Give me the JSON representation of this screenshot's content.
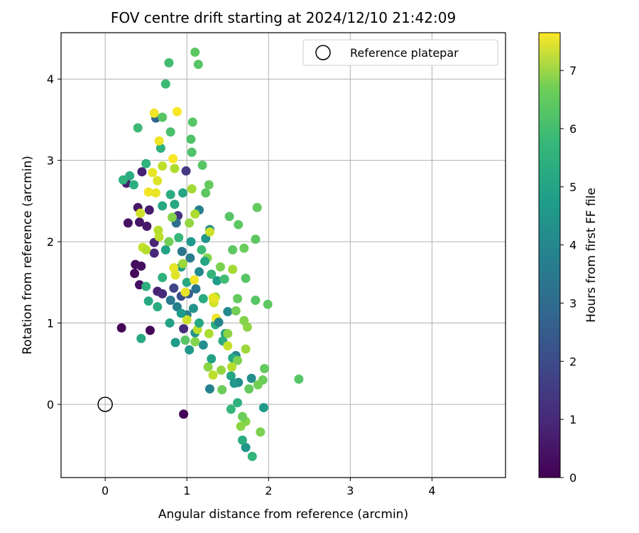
{
  "chart_data": {
    "type": "scatter",
    "title": "FOV centre drift starting at 2024/12/10 21:42:09",
    "xlabel": "Angular distance from reference (arcmin)",
    "ylabel": "Rotation from reference (arcmin)",
    "xlim": [
      -0.54,
      4.9
    ],
    "ylim": [
      -0.9,
      4.57
    ],
    "xticks": [
      "0",
      "1",
      "2",
      "3",
      "4"
    ],
    "yticks": [
      "0",
      "1",
      "2",
      "3",
      "4"
    ],
    "grid": true,
    "legend": {
      "placement": "top-right",
      "entries": [
        "Reference platepar"
      ]
    },
    "reference_point": {
      "x": 0,
      "y": 0
    },
    "colorbar": {
      "label": "Hours from first FF file",
      "range": [
        0,
        7.65
      ],
      "ticks": [
        "0",
        "1",
        "2",
        "3",
        "4",
        "5",
        "6",
        "7"
      ],
      "colormap": "viridis"
    },
    "points": [
      {
        "x": 0.2,
        "y": 0.94,
        "c": 0.05
      },
      {
        "x": 0.55,
        "y": 0.91,
        "c": 0.1
      },
      {
        "x": 0.96,
        "y": -0.12,
        "c": 0.05
      },
      {
        "x": 0.36,
        "y": 1.61,
        "c": 0.2
      },
      {
        "x": 0.37,
        "y": 1.72,
        "c": 0.25
      },
      {
        "x": 0.42,
        "y": 1.47,
        "c": 0.3
      },
      {
        "x": 0.44,
        "y": 1.7,
        "c": 0.3
      },
      {
        "x": 0.28,
        "y": 2.23,
        "c": 0.4
      },
      {
        "x": 0.42,
        "y": 2.24,
        "c": 0.45
      },
      {
        "x": 0.51,
        "y": 2.19,
        "c": 0.5
      },
      {
        "x": 0.54,
        "y": 2.39,
        "c": 0.55
      },
      {
        "x": 0.4,
        "y": 2.42,
        "c": 0.5
      },
      {
        "x": 0.26,
        "y": 2.72,
        "c": 0.6
      },
      {
        "x": 0.45,
        "y": 2.86,
        "c": 0.7
      },
      {
        "x": 0.6,
        "y": 1.99,
        "c": 0.8
      },
      {
        "x": 0.6,
        "y": 1.86,
        "c": 0.85
      },
      {
        "x": 0.64,
        "y": 1.39,
        "c": 0.75
      },
      {
        "x": 0.7,
        "y": 1.36,
        "c": 0.9
      },
      {
        "x": 0.96,
        "y": 0.93,
        "c": 0.95
      },
      {
        "x": 0.99,
        "y": 2.87,
        "c": 1.3
      },
      {
        "x": 0.89,
        "y": 2.32,
        "c": 1.15
      },
      {
        "x": 0.84,
        "y": 1.43,
        "c": 1.6
      },
      {
        "x": 0.93,
        "y": 1.33,
        "c": 1.9
      },
      {
        "x": 1.02,
        "y": 1.36,
        "c": 2.2
      },
      {
        "x": 0.62,
        "y": 3.52,
        "c": 2.5
      },
      {
        "x": 0.87,
        "y": 2.23,
        "c": 2.8
      },
      {
        "x": 0.94,
        "y": 1.88,
        "c": 3.0
      },
      {
        "x": 0.8,
        "y": 1.28,
        "c": 3.1
      },
      {
        "x": 0.88,
        "y": 1.2,
        "c": 3.3
      },
      {
        "x": 1.0,
        "y": 1.1,
        "c": 3.2
      },
      {
        "x": 1.11,
        "y": 1.42,
        "c": 3.0
      },
      {
        "x": 1.15,
        "y": 2.39,
        "c": 3.3
      },
      {
        "x": 1.28,
        "y": 0.19,
        "c": 3.4
      },
      {
        "x": 1.6,
        "y": 0.6,
        "c": 3.5
      },
      {
        "x": 1.5,
        "y": 1.14,
        "c": 3.6
      },
      {
        "x": 1.63,
        "y": 0.27,
        "c": 3.7
      },
      {
        "x": 1.79,
        "y": 0.32,
        "c": 3.8
      },
      {
        "x": 1.72,
        "y": -0.53,
        "c": 4.0
      },
      {
        "x": 1.94,
        "y": -0.04,
        "c": 4.2
      },
      {
        "x": 1.1,
        "y": 0.88,
        "c": 3.9
      },
      {
        "x": 1.2,
        "y": 0.73,
        "c": 3.8
      },
      {
        "x": 1.03,
        "y": 0.67,
        "c": 4.1
      },
      {
        "x": 0.86,
        "y": 0.76,
        "c": 4.2
      },
      {
        "x": 0.79,
        "y": 1.0,
        "c": 4.4
      },
      {
        "x": 0.93,
        "y": 1.69,
        "c": 4.3
      },
      {
        "x": 1.05,
        "y": 2.0,
        "c": 4.1
      },
      {
        "x": 1.23,
        "y": 2.04,
        "c": 4.0
      },
      {
        "x": 1.28,
        "y": 2.15,
        "c": 3.8
      },
      {
        "x": 1.37,
        "y": 1.52,
        "c": 4.2
      },
      {
        "x": 1.47,
        "y": 0.87,
        "c": 4.3
      },
      {
        "x": 1.54,
        "y": 0.35,
        "c": 4.5
      },
      {
        "x": 0.53,
        "y": 1.27,
        "c": 4.6
      },
      {
        "x": 0.64,
        "y": 1.2,
        "c": 4.7
      },
      {
        "x": 0.5,
        "y": 1.45,
        "c": 4.8
      },
      {
        "x": 0.44,
        "y": 0.81,
        "c": 4.6
      },
      {
        "x": 0.7,
        "y": 1.56,
        "c": 4.9
      },
      {
        "x": 0.35,
        "y": 2.7,
        "c": 4.8
      },
      {
        "x": 0.3,
        "y": 2.81,
        "c": 4.7
      },
      {
        "x": 0.22,
        "y": 2.76,
        "c": 4.9
      },
      {
        "x": 0.5,
        "y": 2.96,
        "c": 4.9
      },
      {
        "x": 0.68,
        "y": 3.15,
        "c": 4.9
      },
      {
        "x": 0.85,
        "y": 2.46,
        "c": 4.6
      },
      {
        "x": 0.8,
        "y": 2.58,
        "c": 4.7
      },
      {
        "x": 0.7,
        "y": 2.44,
        "c": 4.6
      },
      {
        "x": 0.74,
        "y": 1.9,
        "c": 4.4
      },
      {
        "x": 1.0,
        "y": 1.5,
        "c": 4.6
      },
      {
        "x": 1.2,
        "y": 1.3,
        "c": 4.7
      },
      {
        "x": 1.35,
        "y": 0.98,
        "c": 4.8
      },
      {
        "x": 1.44,
        "y": 0.78,
        "c": 4.7
      },
      {
        "x": 1.56,
        "y": 0.57,
        "c": 4.6
      },
      {
        "x": 1.62,
        "y": 0.02,
        "c": 4.9
      },
      {
        "x": 1.68,
        "y": -0.44,
        "c": 4.8
      },
      {
        "x": 1.8,
        "y": -0.64,
        "c": 5.0
      },
      {
        "x": 1.54,
        "y": -0.06,
        "c": 5.1
      },
      {
        "x": 0.74,
        "y": 3.94,
        "c": 5.2
      },
      {
        "x": 0.78,
        "y": 4.2,
        "c": 5.3
      },
      {
        "x": 0.8,
        "y": 3.35,
        "c": 5.4
      },
      {
        "x": 0.4,
        "y": 3.4,
        "c": 5.2
      },
      {
        "x": 0.7,
        "y": 3.53,
        "c": 5.6
      },
      {
        "x": 1.07,
        "y": 3.47,
        "c": 5.6
      },
      {
        "x": 1.1,
        "y": 4.33,
        "c": 5.7
      },
      {
        "x": 1.14,
        "y": 4.18,
        "c": 5.6
      },
      {
        "x": 1.06,
        "y": 3.1,
        "c": 5.5
      },
      {
        "x": 1.05,
        "y": 3.26,
        "c": 5.5
      },
      {
        "x": 1.19,
        "y": 2.94,
        "c": 5.6
      },
      {
        "x": 1.23,
        "y": 2.6,
        "c": 5.7
      },
      {
        "x": 1.27,
        "y": 2.7,
        "c": 5.8
      },
      {
        "x": 1.52,
        "y": 2.31,
        "c": 5.6
      },
      {
        "x": 1.63,
        "y": 2.21,
        "c": 5.7
      },
      {
        "x": 1.86,
        "y": 2.42,
        "c": 5.8
      },
      {
        "x": 1.84,
        "y": 2.03,
        "c": 5.7
      },
      {
        "x": 1.7,
        "y": 1.92,
        "c": 5.9
      },
      {
        "x": 1.56,
        "y": 1.9,
        "c": 5.7
      },
      {
        "x": 1.72,
        "y": 1.55,
        "c": 5.6
      },
      {
        "x": 1.62,
        "y": 1.3,
        "c": 5.8
      },
      {
        "x": 1.84,
        "y": 1.28,
        "c": 5.6
      },
      {
        "x": 1.99,
        "y": 1.23,
        "c": 5.7
      },
      {
        "x": 2.37,
        "y": 0.31,
        "c": 5.6
      },
      {
        "x": 1.95,
        "y": 0.44,
        "c": 5.8
      },
      {
        "x": 1.93,
        "y": 0.3,
        "c": 5.9
      },
      {
        "x": 1.87,
        "y": 0.24,
        "c": 6.0
      },
      {
        "x": 1.76,
        "y": 0.19,
        "c": 5.8
      },
      {
        "x": 1.9,
        "y": -0.34,
        "c": 6.1
      },
      {
        "x": 1.72,
        "y": -0.21,
        "c": 6.2
      },
      {
        "x": 1.68,
        "y": -0.15,
        "c": 5.9
      },
      {
        "x": 1.66,
        "y": -0.27,
        "c": 6.3
      },
      {
        "x": 1.43,
        "y": 0.18,
        "c": 5.9
      },
      {
        "x": 1.62,
        "y": 0.54,
        "c": 6.1
      },
      {
        "x": 1.5,
        "y": 0.87,
        "c": 6.3
      },
      {
        "x": 1.7,
        "y": 1.03,
        "c": 6.2
      },
      {
        "x": 1.35,
        "y": 1.32,
        "c": 6.4
      },
      {
        "x": 1.1,
        "y": 0.77,
        "c": 6.2
      },
      {
        "x": 1.26,
        "y": 0.46,
        "c": 6.3
      },
      {
        "x": 1.41,
        "y": 1.69,
        "c": 6.1
      },
      {
        "x": 1.25,
        "y": 1.8,
        "c": 6.2
      },
      {
        "x": 0.95,
        "y": 1.73,
        "c": 6.5
      },
      {
        "x": 1.03,
        "y": 2.23,
        "c": 6.4
      },
      {
        "x": 1.1,
        "y": 2.34,
        "c": 6.7
      },
      {
        "x": 1.06,
        "y": 2.65,
        "c": 6.6
      },
      {
        "x": 0.85,
        "y": 2.9,
        "c": 6.7
      },
      {
        "x": 0.7,
        "y": 2.93,
        "c": 6.9
      },
      {
        "x": 0.66,
        "y": 2.06,
        "c": 6.9
      },
      {
        "x": 0.46,
        "y": 1.93,
        "c": 7.0
      },
      {
        "x": 0.5,
        "y": 1.9,
        "c": 6.8
      },
      {
        "x": 0.65,
        "y": 2.14,
        "c": 6.8
      },
      {
        "x": 0.43,
        "y": 2.35,
        "c": 7.1
      },
      {
        "x": 1.28,
        "y": 2.12,
        "c": 7.1
      },
      {
        "x": 1.33,
        "y": 1.25,
        "c": 7.1
      },
      {
        "x": 1.32,
        "y": 1.31,
        "c": 7.3
      },
      {
        "x": 1.0,
        "y": 1.04,
        "c": 7.1
      },
      {
        "x": 1.13,
        "y": 0.92,
        "c": 6.9
      },
      {
        "x": 1.5,
        "y": 0.72,
        "c": 7.0
      },
      {
        "x": 1.55,
        "y": 0.46,
        "c": 6.8
      },
      {
        "x": 1.27,
        "y": 0.87,
        "c": 6.7
      },
      {
        "x": 1.32,
        "y": 0.36,
        "c": 6.9
      },
      {
        "x": 1.72,
        "y": 0.68,
        "c": 6.5
      },
      {
        "x": 0.6,
        "y": 3.58,
        "c": 7.5
      },
      {
        "x": 0.88,
        "y": 3.6,
        "c": 7.6
      },
      {
        "x": 0.66,
        "y": 3.24,
        "c": 7.5
      },
      {
        "x": 0.83,
        "y": 3.02,
        "c": 7.6
      },
      {
        "x": 0.53,
        "y": 2.61,
        "c": 7.5
      },
      {
        "x": 0.62,
        "y": 2.6,
        "c": 7.4
      },
      {
        "x": 0.58,
        "y": 2.85,
        "c": 7.4
      },
      {
        "x": 0.64,
        "y": 2.75,
        "c": 7.3
      },
      {
        "x": 0.84,
        "y": 1.68,
        "c": 7.4
      },
      {
        "x": 0.86,
        "y": 1.59,
        "c": 7.3
      },
      {
        "x": 1.09,
        "y": 1.53,
        "c": 7.5
      },
      {
        "x": 1.34,
        "y": 1.3,
        "c": 7.4
      },
      {
        "x": 1.36,
        "y": 1.06,
        "c": 7.5
      },
      {
        "x": 0.98,
        "y": 1.38,
        "c": 7.4
      },
      {
        "x": 0.93,
        "y": 1.12,
        "c": 4.2
      },
      {
        "x": 1.08,
        "y": 1.18,
        "c": 3.9
      },
      {
        "x": 1.15,
        "y": 1.63,
        "c": 3.6
      },
      {
        "x": 1.22,
        "y": 1.76,
        "c": 4.5
      },
      {
        "x": 1.3,
        "y": 1.6,
        "c": 5.0
      },
      {
        "x": 1.46,
        "y": 1.54,
        "c": 5.3
      },
      {
        "x": 1.56,
        "y": 1.66,
        "c": 6.6
      },
      {
        "x": 1.6,
        "y": 1.15,
        "c": 6.0
      },
      {
        "x": 1.74,
        "y": 0.95,
        "c": 6.3
      },
      {
        "x": 1.39,
        "y": 1.01,
        "c": 3.5
      },
      {
        "x": 1.15,
        "y": 1.0,
        "c": 4.6
      },
      {
        "x": 0.98,
        "y": 0.79,
        "c": 5.6
      },
      {
        "x": 1.3,
        "y": 0.56,
        "c": 4.4
      },
      {
        "x": 1.42,
        "y": 0.42,
        "c": 6.4
      },
      {
        "x": 1.58,
        "y": 0.26,
        "c": 4.0
      },
      {
        "x": 1.18,
        "y": 1.9,
        "c": 5.2
      },
      {
        "x": 1.04,
        "y": 1.8,
        "c": 3.2
      },
      {
        "x": 0.78,
        "y": 2.0,
        "c": 6.0
      },
      {
        "x": 0.9,
        "y": 2.05,
        "c": 5.1
      },
      {
        "x": 0.95,
        "y": 2.6,
        "c": 4.5
      },
      {
        "x": 0.82,
        "y": 2.3,
        "c": 6.2
      }
    ]
  }
}
